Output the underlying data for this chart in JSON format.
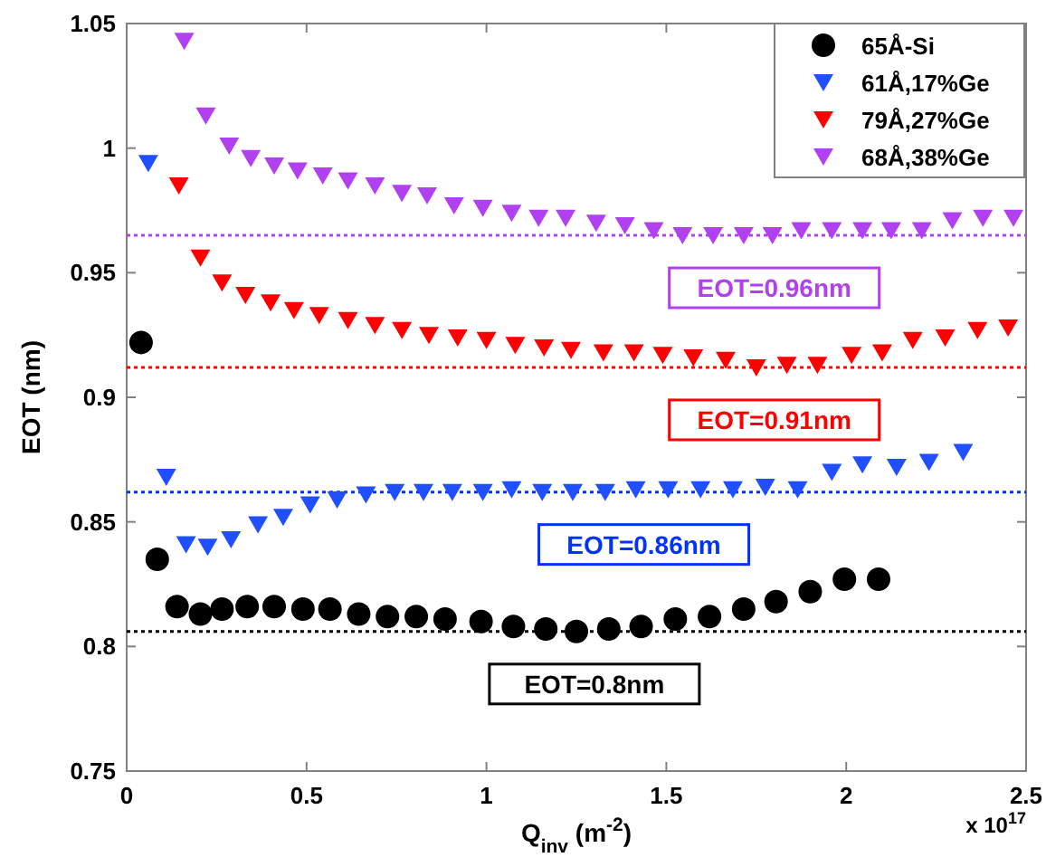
{
  "chart_data": {
    "type": "scatter",
    "xlabel": "Q$_{inv}$ (m$^{-2}$)",
    "ylabel": "EOT (nm)",
    "xlim": [
      0,
      2.5
    ],
    "xticks": [
      0,
      0.5,
      1,
      1.5,
      2,
      2.5
    ],
    "ylim": [
      0.75,
      1.05
    ],
    "yticks": [
      0.75,
      0.8,
      0.85,
      0.9,
      0.95,
      1,
      1.05
    ],
    "grid": false,
    "legend": "top right",
    "annotations": [
      "x 10$^{17}$"
    ],
    "ref_lines": [
      {
        "axis": "y",
        "value": 0.965,
        "label": "EOT=0.96nm",
        "color": "#b040f0",
        "line_style": "dotted"
      },
      {
        "axis": "y",
        "value": 0.912,
        "label": "EOT=0.91nm",
        "color": "#ff0000",
        "line_style": "dotted"
      },
      {
        "axis": "y",
        "value": 0.862,
        "label": "EOT=0.86nm",
        "color": "#0033ff",
        "line_style": "dotted"
      },
      {
        "axis": "y",
        "value": 0.806,
        "label": "EOT=0.8nm",
        "color": "#000000",
        "line_style": "dotted"
      }
    ],
    "series": [
      {
        "name": "65Å-Si",
        "color": "#000000",
        "marker": "circle",
        "x": [
          0.04,
          0.085,
          0.14,
          0.205,
          0.265,
          0.335,
          0.41,
          0.49,
          0.565,
          0.645,
          0.725,
          0.805,
          0.885,
          0.985,
          1.075,
          1.165,
          1.25,
          1.34,
          1.43,
          1.525,
          1.62,
          1.715,
          1.805,
          1.9,
          1.995,
          2.09
        ],
        "values": [
          0.922,
          0.835,
          0.816,
          0.813,
          0.815,
          0.816,
          0.816,
          0.815,
          0.815,
          0.813,
          0.812,
          0.812,
          0.811,
          0.81,
          0.808,
          0.807,
          0.806,
          0.807,
          0.808,
          0.811,
          0.812,
          0.815,
          0.818,
          0.822,
          0.827,
          0.827
        ]
      },
      {
        "name": "61Å,17%Ge",
        "color": "#1f4fff",
        "marker": "triangle",
        "x": [
          0.06,
          0.11,
          0.165,
          0.225,
          0.29,
          0.365,
          0.435,
          0.51,
          0.585,
          0.665,
          0.745,
          0.825,
          0.905,
          0.99,
          1.07,
          1.155,
          1.24,
          1.33,
          1.415,
          1.505,
          1.595,
          1.685,
          1.775,
          1.865,
          1.96,
          2.045,
          2.14,
          2.23,
          2.325
        ],
        "values": [
          0.994,
          0.868,
          0.841,
          0.84,
          0.843,
          0.849,
          0.852,
          0.857,
          0.859,
          0.861,
          0.862,
          0.862,
          0.862,
          0.862,
          0.863,
          0.862,
          0.862,
          0.862,
          0.863,
          0.863,
          0.863,
          0.863,
          0.864,
          0.863,
          0.87,
          0.873,
          0.872,
          0.874,
          0.878
        ]
      },
      {
        "name": "79Å,27%Ge",
        "color": "#ff0000",
        "marker": "triangle",
        "x": [
          0.145,
          0.205,
          0.265,
          0.33,
          0.4,
          0.465,
          0.535,
          0.615,
          0.69,
          0.765,
          0.84,
          0.92,
          1.0,
          1.08,
          1.16,
          1.235,
          1.325,
          1.41,
          1.49,
          1.575,
          1.665,
          1.75,
          1.835,
          1.92,
          2.015,
          2.1,
          2.185,
          2.275,
          2.365,
          2.45
        ],
        "values": [
          0.985,
          0.956,
          0.946,
          0.941,
          0.938,
          0.935,
          0.933,
          0.931,
          0.929,
          0.927,
          0.925,
          0.924,
          0.923,
          0.921,
          0.92,
          0.919,
          0.918,
          0.918,
          0.917,
          0.916,
          0.915,
          0.912,
          0.913,
          0.913,
          0.917,
          0.918,
          0.923,
          0.924,
          0.927,
          0.928
        ]
      },
      {
        "name": "68Å,38%Ge",
        "color": "#b040f0",
        "marker": "triangle",
        "x": [
          0.16,
          0.22,
          0.285,
          0.345,
          0.41,
          0.475,
          0.545,
          0.615,
          0.69,
          0.765,
          0.835,
          0.91,
          0.99,
          1.07,
          1.145,
          1.22,
          1.305,
          1.385,
          1.465,
          1.545,
          1.63,
          1.715,
          1.795,
          1.875,
          1.96,
          2.045,
          2.125,
          2.21,
          2.295,
          2.38,
          2.465
        ],
        "values": [
          1.043,
          1.013,
          1.001,
          0.996,
          0.993,
          0.991,
          0.989,
          0.987,
          0.985,
          0.982,
          0.981,
          0.977,
          0.976,
          0.974,
          0.972,
          0.972,
          0.97,
          0.969,
          0.967,
          0.965,
          0.965,
          0.965,
          0.965,
          0.967,
          0.967,
          0.967,
          0.967,
          0.967,
          0.971,
          0.972,
          0.972
        ]
      }
    ]
  }
}
